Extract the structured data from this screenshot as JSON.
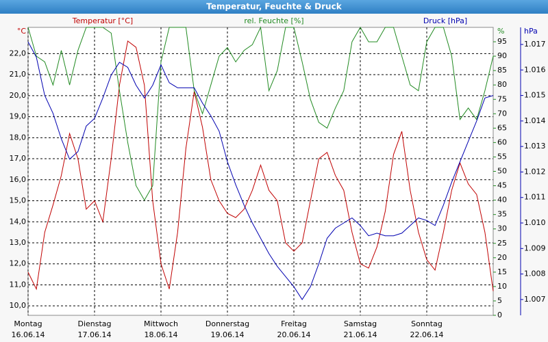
{
  "chart_data": {
    "type": "line",
    "title": "Temperatur, Feuchte & Druck",
    "x": [
      0,
      0.125,
      0.25,
      0.375,
      0.5,
      0.625,
      0.75,
      0.875,
      1,
      1.125,
      1.25,
      1.375,
      1.5,
      1.625,
      1.75,
      1.875,
      2,
      2.125,
      2.25,
      2.375,
      2.5,
      2.625,
      2.75,
      2.875,
      3,
      3.125,
      3.25,
      3.375,
      3.5,
      3.625,
      3.75,
      3.875,
      4,
      4.125,
      4.25,
      4.375,
      4.5,
      4.625,
      4.75,
      4.875,
      5,
      5.125,
      5.25,
      5.375,
      5.5,
      5.625,
      5.75,
      5.875,
      6,
      6.125,
      6.25,
      6.375,
      6.5,
      6.625,
      6.75,
      6.875,
      7
    ],
    "xlim": [
      0,
      7
    ],
    "xticks": [
      {
        "value": 0,
        "label": "Montag"
      },
      {
        "value": 1,
        "label": "Dienstag"
      },
      {
        "value": 2,
        "label": "Mittwoch"
      },
      {
        "value": 3,
        "label": "Donnerstag"
      },
      {
        "value": 4,
        "label": "Freitag"
      },
      {
        "value": 5,
        "label": "Samstag"
      },
      {
        "value": 6,
        "label": "Sonntag"
      }
    ],
    "xtick_dates": [
      "16.06.14",
      "17.06.14",
      "18.06.14",
      "19.06.14",
      "20.06.14",
      "21.06.14",
      "22.06.14"
    ],
    "grid": true,
    "y_unit": "°C",
    "y2_unit": "%",
    "y3_unit": "hPa",
    "ylim": [
      9.55,
      23.25
    ],
    "yticks": [
      {
        "value": 10,
        "label": "10,0"
      },
      {
        "value": 11,
        "label": "11,0"
      },
      {
        "value": 12,
        "label": "12,0"
      },
      {
        "value": 13,
        "label": "13,0"
      },
      {
        "value": 14,
        "label": "14,0"
      },
      {
        "value": 15,
        "label": "15,0"
      },
      {
        "value": 16,
        "label": "16,0"
      },
      {
        "value": 17,
        "label": "17,0"
      },
      {
        "value": 18,
        "label": "18,0"
      },
      {
        "value": 19,
        "label": "19,0"
      },
      {
        "value": 20,
        "label": "20,0"
      },
      {
        "value": 21,
        "label": "21,0"
      },
      {
        "value": 22,
        "label": "22,0"
      }
    ],
    "y2lim": [
      0,
      100
    ],
    "y2ticks": [
      0,
      5,
      10,
      15,
      20,
      25,
      30,
      35,
      40,
      45,
      50,
      55,
      60,
      65,
      70,
      75,
      80,
      85,
      90,
      95
    ],
    "y3lim": [
      1006.38,
      1017.67
    ],
    "y3ticks": [
      {
        "value": 1007,
        "label": "1.007"
      },
      {
        "value": 1008,
        "label": "1.008"
      },
      {
        "value": 1009,
        "label": "1.009"
      },
      {
        "value": 1010,
        "label": "1.010"
      },
      {
        "value": 1011,
        "label": "1.011"
      },
      {
        "value": 1012,
        "label": "1.012"
      },
      {
        "value": 1013,
        "label": "1.013"
      },
      {
        "value": 1014,
        "label": "1.014"
      },
      {
        "value": 1015,
        "label": "1.015"
      },
      {
        "value": 1016,
        "label": "1.016"
      },
      {
        "value": 1017,
        "label": "1.017"
      }
    ],
    "series": [
      {
        "name": "Temperatur [°C]",
        "color": "#c00000",
        "axis": "y",
        "values": [
          11.6,
          10.8,
          13.5,
          14.8,
          16.2,
          18.2,
          17.0,
          14.6,
          15.0,
          14.0,
          17.0,
          20.5,
          22.6,
          22.3,
          20.5,
          15.0,
          12.0,
          10.8,
          13.5,
          17.5,
          20.2,
          18.5,
          16.0,
          15.0,
          14.4,
          14.2,
          14.6,
          15.5,
          16.7,
          15.5,
          15.0,
          13.0,
          12.6,
          13.0,
          15.0,
          17.0,
          17.3,
          16.2,
          15.5,
          13.5,
          12.0,
          11.8,
          12.8,
          14.5,
          17.2,
          18.3,
          15.5,
          13.5,
          12.2,
          11.7,
          13.5,
          15.5,
          16.8,
          15.8,
          15.3,
          13.5,
          10.7
        ]
      },
      {
        "name": "rel. Feuchte [%]",
        "color": "#218a21",
        "axis": "y2",
        "values": [
          100,
          90,
          88,
          80,
          92,
          80,
          92,
          100,
          100,
          100,
          98,
          78,
          60,
          45,
          40,
          45,
          88,
          100,
          100,
          100,
          78,
          70,
          80,
          90,
          93,
          88,
          92,
          94,
          100,
          78,
          85,
          100,
          100,
          88,
          75,
          67,
          65,
          72,
          78,
          95,
          100,
          95,
          95,
          100,
          100,
          90,
          80,
          78,
          95,
          100,
          100,
          90,
          68,
          72,
          68,
          78,
          90
        ]
      },
      {
        "name": "Druck [hPa]",
        "color": "#0000b0",
        "axis": "y3",
        "values": [
          1017.1,
          1016.5,
          1015.0,
          1014.3,
          1013.3,
          1012.5,
          1012.8,
          1013.8,
          1014.1,
          1014.9,
          1015.8,
          1016.3,
          1016.1,
          1015.4,
          1014.9,
          1015.4,
          1016.2,
          1015.5,
          1015.3,
          1015.3,
          1015.3,
          1014.7,
          1014.2,
          1013.6,
          1012.4,
          1011.5,
          1010.7,
          1010.0,
          1009.4,
          1008.8,
          1008.3,
          1007.9,
          1007.5,
          1007.0,
          1007.5,
          1008.4,
          1009.4,
          1009.8,
          1010.0,
          1010.2,
          1009.9,
          1009.5,
          1009.6,
          1009.5,
          1009.5,
          1009.6,
          1009.9,
          1010.2,
          1010.1,
          1009.9,
          1010.7,
          1011.6,
          1012.4,
          1013.2,
          1014.0,
          1014.9,
          1015.0
        ]
      }
    ]
  }
}
